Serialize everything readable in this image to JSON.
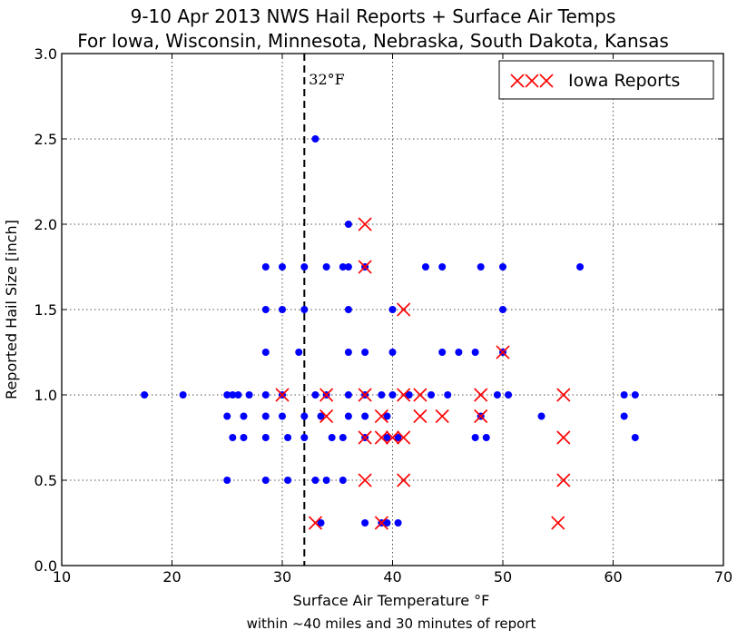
{
  "chart_data": {
    "type": "scatter",
    "title_line1": "9-10 Apr 2013 NWS Hail Reports + Surface Air Temps",
    "title_line2": "For Iowa, Wisconsin, Minnesota, Nebraska, South Dakota, Kansas",
    "xlabel": "Surface Air Temperature °F",
    "xlabel_sub": "within ~40 miles and 30 minutes of report",
    "ylabel": "Reported Hail Size [inch]",
    "xlim": [
      10,
      70
    ],
    "ylim": [
      0.0,
      3.0
    ],
    "xticks": [
      10,
      20,
      30,
      40,
      50,
      60,
      70
    ],
    "yticks": [
      0.0,
      0.5,
      1.0,
      1.5,
      2.0,
      2.5,
      3.0
    ],
    "ytick_labels": [
      "0.0",
      "0.5",
      "1.0",
      "1.5",
      "2.0",
      "2.5",
      "3.0"
    ],
    "grid": true,
    "legend_position": "top-right",
    "reference_line": {
      "x": 32,
      "label": "32°F",
      "style": "dashed"
    },
    "series": [
      {
        "name": "",
        "marker": "dot",
        "color": "#0000ff",
        "points": [
          [
            17.5,
            1.0
          ],
          [
            21,
            1.0
          ],
          [
            25,
            1.0
          ],
          [
            25.5,
            1.0
          ],
          [
            26,
            1.0
          ],
          [
            27,
            1.0
          ],
          [
            28.5,
            1.0
          ],
          [
            30,
            1.0
          ],
          [
            33,
            1.0
          ],
          [
            34,
            1.0
          ],
          [
            36,
            1.0
          ],
          [
            37.5,
            1.0
          ],
          [
            39,
            1.0
          ],
          [
            40,
            1.0
          ],
          [
            41.5,
            1.0
          ],
          [
            43.5,
            1.0
          ],
          [
            45,
            1.0
          ],
          [
            49.5,
            1.0
          ],
          [
            50.5,
            1.0
          ],
          [
            61,
            1.0
          ],
          [
            62,
            1.0
          ],
          [
            25,
            0.875
          ],
          [
            26.5,
            0.875
          ],
          [
            28.5,
            0.875
          ],
          [
            30,
            0.875
          ],
          [
            32,
            0.875
          ],
          [
            33.5,
            0.875
          ],
          [
            36,
            0.875
          ],
          [
            37.5,
            0.875
          ],
          [
            39.5,
            0.875
          ],
          [
            48,
            0.875
          ],
          [
            53.5,
            0.875
          ],
          [
            61,
            0.875
          ],
          [
            25.5,
            0.75
          ],
          [
            26.5,
            0.75
          ],
          [
            28.5,
            0.75
          ],
          [
            30.5,
            0.75
          ],
          [
            32,
            0.75
          ],
          [
            34.5,
            0.75
          ],
          [
            35.5,
            0.75
          ],
          [
            37.5,
            0.75
          ],
          [
            39.5,
            0.75
          ],
          [
            40.5,
            0.75
          ],
          [
            47.5,
            0.75
          ],
          [
            48.5,
            0.75
          ],
          [
            62,
            0.75
          ],
          [
            25,
            0.5
          ],
          [
            28.5,
            0.5
          ],
          [
            30.5,
            0.5
          ],
          [
            33,
            0.5
          ],
          [
            34,
            0.5
          ],
          [
            35.5,
            0.5
          ],
          [
            33.5,
            0.25
          ],
          [
            37.5,
            0.25
          ],
          [
            39,
            0.25
          ],
          [
            39.5,
            0.25
          ],
          [
            40.5,
            0.25
          ],
          [
            28.5,
            1.25
          ],
          [
            31.5,
            1.25
          ],
          [
            36,
            1.25
          ],
          [
            37.5,
            1.25
          ],
          [
            40,
            1.25
          ],
          [
            44.5,
            1.25
          ],
          [
            46,
            1.25
          ],
          [
            47.5,
            1.25
          ],
          [
            50,
            1.25
          ],
          [
            28.5,
            1.5
          ],
          [
            30,
            1.5
          ],
          [
            32,
            1.5
          ],
          [
            36,
            1.5
          ],
          [
            40,
            1.5
          ],
          [
            50,
            1.5
          ],
          [
            28.5,
            1.75
          ],
          [
            30,
            1.75
          ],
          [
            32,
            1.75
          ],
          [
            34,
            1.75
          ],
          [
            35.5,
            1.75
          ],
          [
            36,
            1.75
          ],
          [
            37.5,
            1.75
          ],
          [
            43,
            1.75
          ],
          [
            44.5,
            1.75
          ],
          [
            48,
            1.75
          ],
          [
            50,
            1.75
          ],
          [
            57,
            1.75
          ],
          [
            36,
            2.0
          ],
          [
            33,
            2.5
          ]
        ]
      },
      {
        "name": "Iowa Reports",
        "marker": "x",
        "color": "#ff0000",
        "points": [
          [
            30,
            1.0
          ],
          [
            34,
            1.0
          ],
          [
            37.5,
            1.0
          ],
          [
            41,
            1.0
          ],
          [
            42.5,
            1.0
          ],
          [
            48,
            1.0
          ],
          [
            55.5,
            1.0
          ],
          [
            34,
            0.875
          ],
          [
            39,
            0.875
          ],
          [
            42.5,
            0.875
          ],
          [
            44.5,
            0.875
          ],
          [
            48,
            0.875
          ],
          [
            37.5,
            0.75
          ],
          [
            39,
            0.75
          ],
          [
            40,
            0.75
          ],
          [
            41,
            0.75
          ],
          [
            55.5,
            0.75
          ],
          [
            37.5,
            0.5
          ],
          [
            41,
            0.5
          ],
          [
            55.5,
            0.5
          ],
          [
            33,
            0.25
          ],
          [
            39,
            0.25
          ],
          [
            55,
            0.25
          ],
          [
            50,
            1.25
          ],
          [
            41,
            1.5
          ],
          [
            37.5,
            1.75
          ],
          [
            37.5,
            2.0
          ]
        ]
      }
    ]
  }
}
